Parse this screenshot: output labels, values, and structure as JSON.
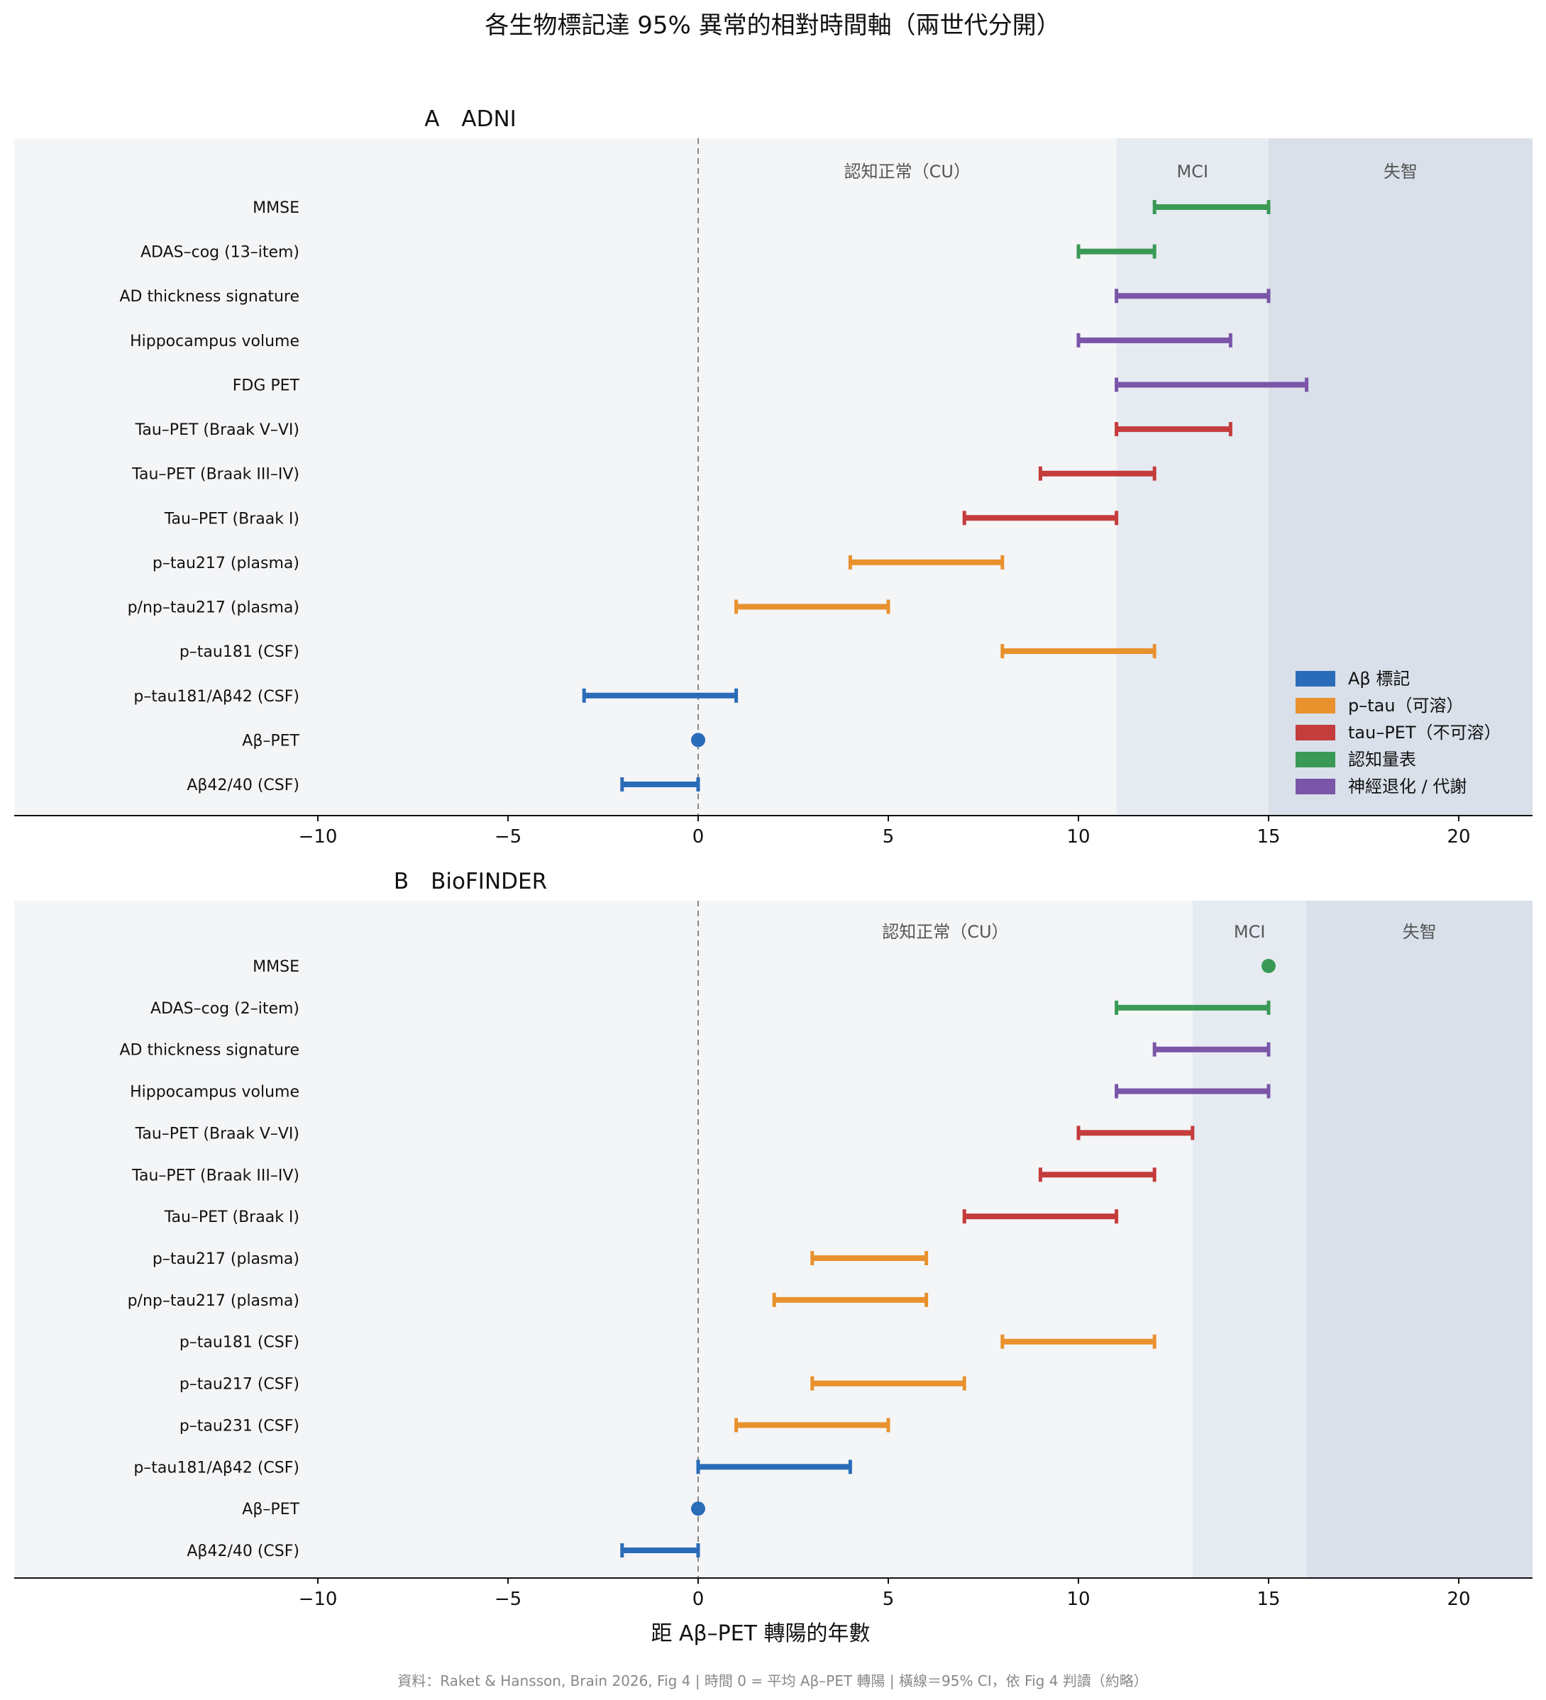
{
  "title": "各生物標記達 95% 異常的相對時間軸（兩世代分開）",
  "xlabel": "距 Aβ–PET 轉陽的年數",
  "footer": "資料：Raket & Hansson, Brain 2026, Fig 4 | 時間 0 = 平均 Aβ–PET 轉陽 | 橫線＝95% CI，依 Fig 4 判讀（約略）",
  "colors": {
    "abeta": "#2b6cb8",
    "ptau": "#e8912d",
    "taupet": "#c43c3c",
    "cog": "#3a9a55",
    "neuro": "#7a55a8",
    "bg_cu": "#f4f5f7",
    "bg_mci": "#e6ebf2",
    "bg_dementia": "#d9e0e9"
  },
  "legend": [
    {
      "key": "abeta",
      "label": "Aβ 標記"
    },
    {
      "key": "ptau",
      "label": "p–tau（可溶）"
    },
    {
      "key": "taupet",
      "label": "tau–PET（不可溶）"
    },
    {
      "key": "cog",
      "label": "認知量表"
    },
    {
      "key": "neuro",
      "label": "神經退化 / 代謝"
    }
  ],
  "chart_data": [
    {
      "type": "range",
      "panel_label": "A　ADNI",
      "xlim": [
        -10,
        22
      ],
      "xticks": [
        -10,
        -5,
        0,
        5,
        10,
        15,
        20
      ],
      "xtick_labels": [
        "−10",
        "−5",
        "0",
        "5",
        "10",
        "15",
        "20"
      ],
      "stages": [
        {
          "label": "認知正常（CU）",
          "from": -10,
          "to": 11,
          "color_key": "bg_cu"
        },
        {
          "label": "MCI",
          "from": 11,
          "to": 15,
          "color_key": "bg_mci"
        },
        {
          "label": "失智",
          "from": 15,
          "to": 22,
          "color_key": "bg_dementia"
        }
      ],
      "reference_line_x": 0,
      "legend_position": "bottom-right",
      "rows": [
        {
          "label": "MMSE",
          "group": "cog",
          "lo": 12,
          "hi": 15
        },
        {
          "label": "ADAS–cog (13–item)",
          "group": "cog",
          "lo": 10,
          "hi": 12
        },
        {
          "label": "AD thickness signature",
          "group": "neuro",
          "lo": 11,
          "hi": 15
        },
        {
          "label": "Hippocampus volume",
          "group": "neuro",
          "lo": 10,
          "hi": 14
        },
        {
          "label": "FDG PET",
          "group": "neuro",
          "lo": 11,
          "hi": 16
        },
        {
          "label": "Tau–PET (Braak V–VI)",
          "group": "taupet",
          "lo": 11,
          "hi": 14
        },
        {
          "label": "Tau–PET (Braak III–IV)",
          "group": "taupet",
          "lo": 9,
          "hi": 12
        },
        {
          "label": "Tau–PET (Braak I)",
          "group": "taupet",
          "lo": 7,
          "hi": 11
        },
        {
          "label": "p–tau217 (plasma)",
          "group": "ptau",
          "lo": 4,
          "hi": 8
        },
        {
          "label": "p/np–tau217 (plasma)",
          "group": "ptau",
          "lo": 1,
          "hi": 5
        },
        {
          "label": "p–tau181 (CSF)",
          "group": "ptau",
          "lo": 8,
          "hi": 12
        },
        {
          "label": "p–tau181/Aβ42 (CSF)",
          "group": "abeta",
          "lo": -3,
          "hi": 1
        },
        {
          "label": "Aβ–PET",
          "group": "abeta",
          "lo": 0,
          "hi": 0
        },
        {
          "label": "Aβ42/40 (CSF)",
          "group": "abeta",
          "lo": -2,
          "hi": 0
        }
      ]
    },
    {
      "type": "range",
      "panel_label": "B　BioFINDER",
      "xlim": [
        -10,
        22
      ],
      "xticks": [
        -10,
        -5,
        0,
        5,
        10,
        15,
        20
      ],
      "xtick_labels": [
        "−10",
        "−5",
        "0",
        "5",
        "10",
        "15",
        "20"
      ],
      "stages": [
        {
          "label": "認知正常（CU）",
          "from": -10,
          "to": 13,
          "color_key": "bg_cu"
        },
        {
          "label": "MCI",
          "from": 13,
          "to": 16,
          "color_key": "bg_mci"
        },
        {
          "label": "失智",
          "from": 16,
          "to": 22,
          "color_key": "bg_dementia"
        }
      ],
      "reference_line_x": 0,
      "rows": [
        {
          "label": "MMSE",
          "group": "cog",
          "lo": 15,
          "hi": 15
        },
        {
          "label": "ADAS–cog (2–item)",
          "group": "cog",
          "lo": 11,
          "hi": 15
        },
        {
          "label": "AD thickness signature",
          "group": "neuro",
          "lo": 12,
          "hi": 15
        },
        {
          "label": "Hippocampus volume",
          "group": "neuro",
          "lo": 11,
          "hi": 15
        },
        {
          "label": "Tau–PET (Braak V–VI)",
          "group": "taupet",
          "lo": 10,
          "hi": 13
        },
        {
          "label": "Tau–PET (Braak III–IV)",
          "group": "taupet",
          "lo": 9,
          "hi": 12
        },
        {
          "label": "Tau–PET (Braak I)",
          "group": "taupet",
          "lo": 7,
          "hi": 11
        },
        {
          "label": "p–tau217 (plasma)",
          "group": "ptau",
          "lo": 3,
          "hi": 6
        },
        {
          "label": "p/np–tau217 (plasma)",
          "group": "ptau",
          "lo": 2,
          "hi": 6
        },
        {
          "label": "p–tau181 (CSF)",
          "group": "ptau",
          "lo": 8,
          "hi": 12
        },
        {
          "label": "p–tau217 (CSF)",
          "group": "ptau",
          "lo": 3,
          "hi": 7
        },
        {
          "label": "p–tau231 (CSF)",
          "group": "ptau",
          "lo": 1,
          "hi": 5
        },
        {
          "label": "p–tau181/Aβ42 (CSF)",
          "group": "abeta",
          "lo": 0,
          "hi": 4
        },
        {
          "label": "Aβ–PET",
          "group": "abeta",
          "lo": 0,
          "hi": 0
        },
        {
          "label": "Aβ42/40 (CSF)",
          "group": "abeta",
          "lo": -2,
          "hi": 0
        }
      ]
    }
  ]
}
